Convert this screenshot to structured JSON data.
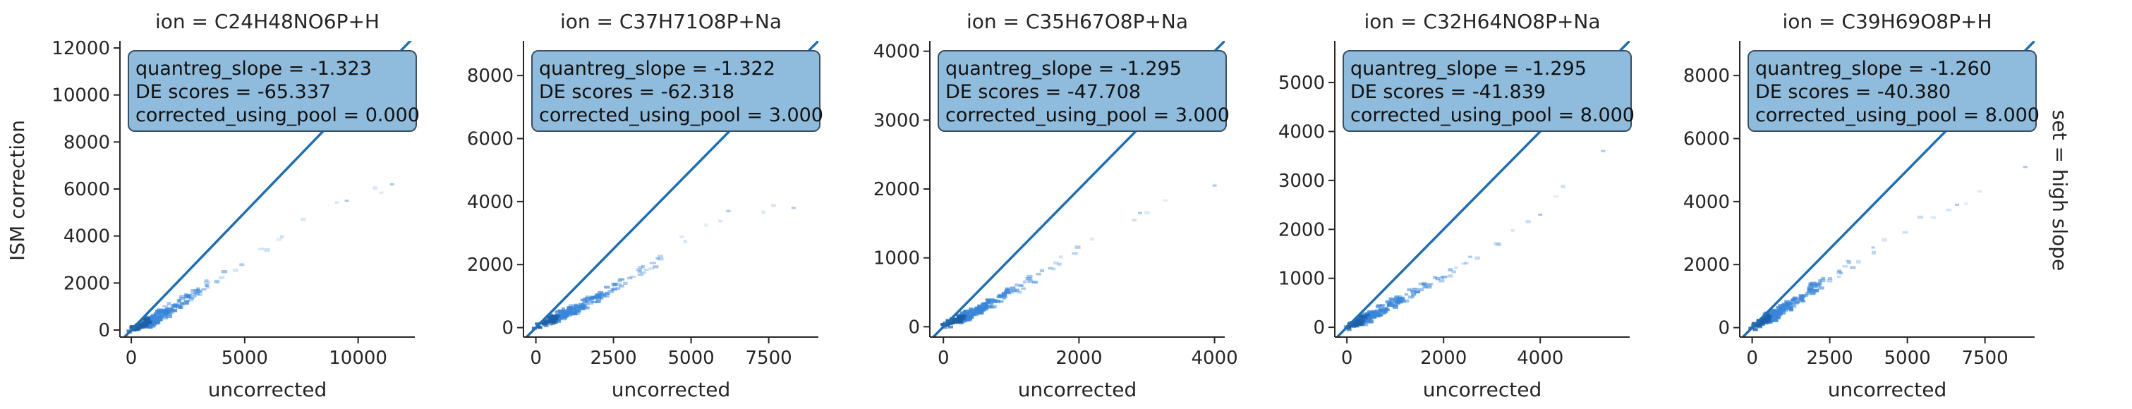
{
  "figure": {
    "shared_ylabel": "ISM correction",
    "side_label": "set = high slope",
    "colors": {
      "line": "#1f6fb0",
      "hist": "#3a86d8",
      "box_fill": "#8fbbdc",
      "box_edge": "#3b4f63",
      "axis": "#262626"
    }
  },
  "chart_data": [
    {
      "type": "heatmap",
      "title": "ion = C24H48NO6P+H",
      "xlabel": "uncorrected",
      "ylabel": "ISM correction",
      "xlim": [
        -500,
        12500
      ],
      "ylim": [
        -300,
        12300
      ],
      "xticks": [
        0,
        5000,
        10000
      ],
      "xtick_labels": [
        "0",
        "5000",
        "10000"
      ],
      "yticks": [
        0,
        2000,
        4000,
        6000,
        8000,
        10000,
        12000
      ],
      "ytick_labels": [
        "0",
        "2000",
        "4000",
        "6000",
        "8000",
        "10000",
        "12000"
      ],
      "identity_line": true,
      "stats": {
        "line1": "quantreg_slope = -1.323",
        "line2": "DE scores = -65.337",
        "line3": "corrected_using_pool = 0.000"
      },
      "points": [
        [
          600,
          300
        ],
        [
          1000,
          500
        ],
        [
          1500,
          800
        ],
        [
          2000,
          1100
        ],
        [
          2500,
          1400
        ],
        [
          3000,
          1700
        ],
        [
          3500,
          2000
        ],
        [
          4200,
          2500
        ],
        [
          5000,
          3000
        ],
        [
          6000,
          3500
        ],
        [
          7500,
          4500
        ],
        [
          9500,
          5500
        ],
        [
          11500,
          6200
        ]
      ]
    },
    {
      "type": "heatmap",
      "title": "ion = C37H71O8P+Na",
      "xlabel": "uncorrected",
      "ylabel": "",
      "xlim": [
        -400,
        9100
      ],
      "ylim": [
        -300,
        9100
      ],
      "xticks": [
        0,
        2500,
        5000,
        7500
      ],
      "xtick_labels": [
        "0",
        "2500",
        "5000",
        "7500"
      ],
      "yticks": [
        0,
        2000,
        4000,
        6000,
        8000
      ],
      "ytick_labels": [
        "0",
        "2000",
        "4000",
        "6000",
        "8000"
      ],
      "identity_line": true,
      "stats": {
        "line1": "quantreg_slope = -1.322",
        "line2": "DE scores = -62.318",
        "line3": "corrected_using_pool = 3.000"
      },
      "points": [
        [
          500,
          250
        ],
        [
          1000,
          500
        ],
        [
          1500,
          750
        ],
        [
          2000,
          1000
        ],
        [
          2500,
          1300
        ],
        [
          3000,
          1600
        ],
        [
          3500,
          1900
        ],
        [
          4000,
          2200
        ],
        [
          4500,
          2600
        ],
        [
          5200,
          3100
        ],
        [
          6200,
          3700
        ],
        [
          8300,
          3800
        ]
      ]
    },
    {
      "type": "heatmap",
      "title": "ion = C35H67O8P+Na",
      "xlabel": "uncorrected",
      "ylabel": "",
      "xlim": [
        -200,
        4150
      ],
      "ylim": [
        -150,
        4150
      ],
      "xticks": [
        0,
        2000,
        4000
      ],
      "xtick_labels": [
        "0",
        "2000",
        "4000"
      ],
      "yticks": [
        0,
        1000,
        2000,
        3000,
        4000
      ],
      "ytick_labels": [
        "0",
        "1000",
        "2000",
        "3000",
        "4000"
      ],
      "identity_line": true,
      "stats": {
        "line1": "quantreg_slope = -1.295",
        "line2": "DE scores = -47.708",
        "line3": "corrected_using_pool = 3.000"
      },
      "points": [
        [
          200,
          100
        ],
        [
          400,
          200
        ],
        [
          600,
          300
        ],
        [
          800,
          420
        ],
        [
          1000,
          520
        ],
        [
          1200,
          620
        ],
        [
          1500,
          800
        ],
        [
          1800,
          1000
        ],
        [
          2100,
          1200
        ],
        [
          2900,
          1650
        ],
        [
          4000,
          2050
        ]
      ]
    },
    {
      "type": "heatmap",
      "title": "ion = C32H64NO8P+Na",
      "xlabel": "uncorrected",
      "ylabel": "",
      "xlim": [
        -250,
        5850
      ],
      "ylim": [
        -200,
        5850
      ],
      "xticks": [
        0,
        2000,
        4000
      ],
      "xtick_labels": [
        "0",
        "2000",
        "4000"
      ],
      "yticks": [
        0,
        1000,
        2000,
        3000,
        4000,
        5000
      ],
      "ytick_labels": [
        "0",
        "1000",
        "2000",
        "3000",
        "4000",
        "5000"
      ],
      "identity_line": true,
      "stats": {
        "line1": "quantreg_slope = -1.295",
        "line2": "DE scores = -41.839",
        "line3": "corrected_using_pool = 8.000"
      },
      "points": [
        [
          250,
          120
        ],
        [
          500,
          250
        ],
        [
          800,
          420
        ],
        [
          1100,
          580
        ],
        [
          1400,
          750
        ],
        [
          1800,
          950
        ],
        [
          2200,
          1150
        ],
        [
          2600,
          1400
        ],
        [
          3200,
          1800
        ],
        [
          4000,
          2300
        ],
        [
          5300,
          3600
        ]
      ]
    },
    {
      "type": "heatmap",
      "title": "ion = C39H69O8P+H",
      "xlabel": "uncorrected",
      "ylabel": "",
      "xlim": [
        -400,
        9100
      ],
      "ylim": [
        -300,
        9100
      ],
      "xticks": [
        0,
        2500,
        5000,
        7500
      ],
      "xtick_labels": [
        "0",
        "2500",
        "5000",
        "7500"
      ],
      "yticks": [
        0,
        2000,
        4000,
        6000,
        8000
      ],
      "ytick_labels": [
        "0",
        "2000",
        "4000",
        "6000",
        "8000"
      ],
      "identity_line": true,
      "stats": {
        "line1": "quantreg_slope = -1.260",
        "line2": "DE scores = -40.380",
        "line3": "corrected_using_pool = 8.000"
      },
      "points": [
        [
          400,
          250
        ],
        [
          800,
          500
        ],
        [
          1200,
          750
        ],
        [
          1600,
          1000
        ],
        [
          2000,
          1300
        ],
        [
          2500,
          1600
        ],
        [
          3000,
          1950
        ],
        [
          3600,
          2350
        ],
        [
          4500,
          2900
        ],
        [
          5500,
          3500
        ],
        [
          6600,
          3900
        ],
        [
          8800,
          5100
        ]
      ]
    }
  ]
}
